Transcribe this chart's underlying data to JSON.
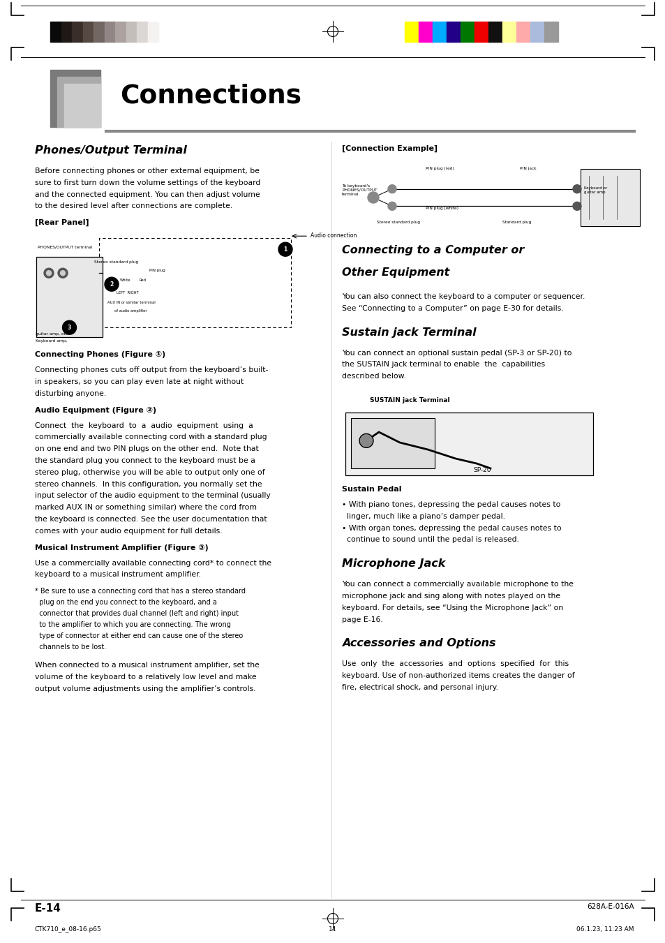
{
  "page_width": 9.54,
  "page_height": 13.51,
  "bg_color": "#ffffff",
  "title": "Connections",
  "section1_title": "Phones/Output Terminal",
  "section1_body_lines": [
    "Before connecting phones or other external equipment, be",
    "sure to first turn down the volume settings of the keyboard",
    "and the connected equipment. You can then adjust volume",
    "to the desired level after connections are complete."
  ],
  "rear_panel_label": "[Rear Panel]",
  "connecting_phones_title": "Connecting Phones (Figure ①)",
  "connecting_phones_body_lines": [
    "Connecting phones cuts off output from the keyboard’s built-",
    "in speakers, so you can play even late at night without",
    "disturbing anyone."
  ],
  "audio_equip_title": "Audio Equipment (Figure ②)",
  "audio_equip_body_lines": [
    "Connect  the  keyboard  to  a  audio  equipment  using  a",
    "commercially available connecting cord with a standard plug",
    "on one end and two PIN plugs on the other end.  Note that",
    "the standard plug you connect to the keyboard must be a",
    "stereo plug, otherwise you will be able to output only one of",
    "stereo channels.  In this configuration, you normally set the",
    "input selector of the audio equipment to the terminal (usually",
    "marked AUX IN or something similar) where the cord from",
    "the keyboard is connected. See the user documentation that",
    "comes with your audio equipment for full details."
  ],
  "musical_title": "Musical Instrument Amplifier (Figure ③)",
  "musical_body_lines": [
    "Use a commercially available connecting cord* to connect the",
    "keyboard to a musical instrument amplifier."
  ],
  "footnote_lines": [
    "* Be sure to use a connecting cord that has a stereo standard",
    "  plug on the end you connect to the keyboard, and a",
    "  connector that provides dual channel (left and right) input",
    "  to the amplifier to which you are connecting. The wrong",
    "  type of connector at either end can cause one of the stereo",
    "  channels to be lost."
  ],
  "amplifier_note_lines": [
    "When connected to a musical instrument amplifier, set the",
    "volume of the keyboard to a relatively low level and make",
    "output volume adjustments using the amplifier’s controls."
  ],
  "connection_example_label": "[Connection Example]",
  "section2_title_lines": [
    "Connecting to a Computer or",
    "Other Equipment"
  ],
  "section2_body_lines": [
    "You can also connect the keyboard to a computer or sequencer.",
    "See “Connecting to a Computer” on page E-30 for details."
  ],
  "section3_title": "Sustain jack Terminal",
  "section3_body_lines": [
    "You can connect an optional sustain pedal (SP-3 or SP-20) to",
    "the SUSTAIN jack terminal to enable  the  capabilities",
    "described below."
  ],
  "sustain_jack_label": "SUSTAIN jack Terminal",
  "sp20_label": "SP-20",
  "sustain_pedal_title": "Sustain Pedal",
  "sustain_pedal_body_lines": [
    "• With piano tones, depressing the pedal causes notes to",
    "  linger, much like a piano’s damper pedal.",
    "• With organ tones, depressing the pedal causes notes to",
    "  continue to sound until the pedal is released."
  ],
  "section4_title": "Microphone Jack",
  "section4_body_lines": [
    "You can connect a commercially available microphone to the",
    "microphone jack and sing along with notes played on the",
    "keyboard. For details, see “Using the Microphone Jack” on",
    "page E-16."
  ],
  "section5_title": "Accessories and Options",
  "section5_body_lines": [
    "Use  only  the  accessories  and  options  specified  for  this",
    "keyboard. Use of non-authorized items creates the danger of",
    "fire, electrical shock, and personal injury."
  ],
  "footer_left": "E-14",
  "footer_right": "628A-E-016A",
  "bottom_left": "CTK710_e_08-16.p65",
  "bottom_center": "14",
  "bottom_right": "06.1.23, 11:23 AM",
  "grayscale_colors": [
    "#0a0a0a",
    "#1f1816",
    "#3a2e2a",
    "#564843",
    "#736763",
    "#918585",
    "#aba2a0",
    "#c4bebb",
    "#dbd7d5",
    "#f5f3f2"
  ],
  "color_bars": [
    "#ffff00",
    "#ff00cc",
    "#00aaff",
    "#220088",
    "#007700",
    "#ee0000",
    "#111111",
    "#ffff99",
    "#ffaaaa",
    "#aabbdd",
    "#999999"
  ]
}
